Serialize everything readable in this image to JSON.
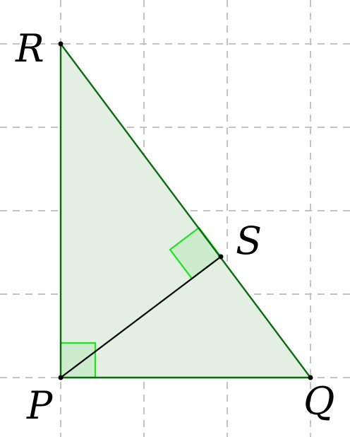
{
  "diagram": {
    "grid": {
      "style": "dashed",
      "color": "#c4c4c4"
    },
    "triangle": {
      "fill_color": "#e2efe2",
      "edge_color": "#0b6b0b"
    },
    "altitude_color": "#000000",
    "right_angle_marker": {
      "fill_color": "#cdeccd",
      "stroke_color": "#22e022"
    },
    "vertices": {
      "P": {
        "label": "P"
      },
      "Q": {
        "label": "Q"
      },
      "R": {
        "label": "R"
      },
      "S": {
        "label": "S"
      }
    }
  }
}
